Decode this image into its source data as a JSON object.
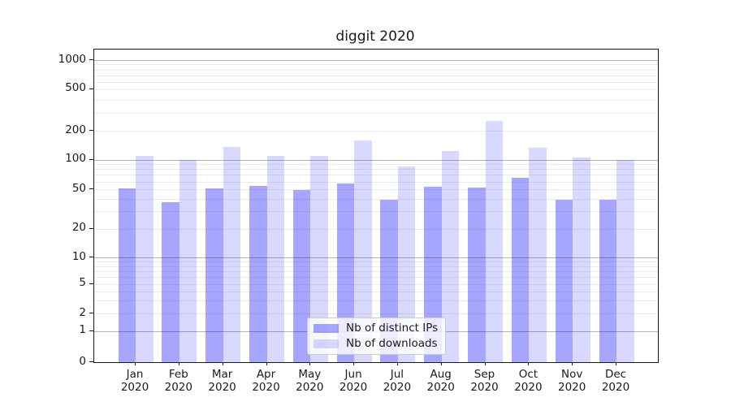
{
  "chart_data": {
    "type": "bar",
    "title": "diggit 2020",
    "categories": [
      "Jan",
      "Feb",
      "Mar",
      "Apr",
      "May",
      "Jun",
      "Jul",
      "Aug",
      "Sep",
      "Oct",
      "Nov",
      "Dec"
    ],
    "x_sub_label": "2020",
    "series": [
      {
        "name": "Nb of distinct IPs",
        "color": "rgba(0,0,255,0.35)",
        "values": [
          51,
          37,
          51,
          54,
          49,
          57,
          39,
          53,
          52,
          66,
          39,
          39
        ]
      },
      {
        "name": "Nb of downloads",
        "color": "rgba(0,0,255,0.15)",
        "values": [
          110,
          100,
          135,
          110,
          110,
          160,
          86,
          123,
          250,
          133,
          105,
          100
        ]
      }
    ],
    "yscale": "symlog",
    "y_ticks": [
      0,
      1,
      2,
      5,
      10,
      20,
      50,
      100,
      200,
      500,
      1000
    ],
    "ylim": [
      0,
      1280
    ],
    "grid": true,
    "legend_position": "lower center"
  },
  "colors": {
    "bar_distinct_ips": "rgba(0,0,255,0.35)",
    "bar_downloads": "rgba(0,0,255,0.15)",
    "grid_major": "#b4b4b4",
    "grid_minor": "#ebebeb",
    "spine": "#1a1a1a",
    "text": "#1a1a1a",
    "legend_bg": "rgba(255,255,255,0.8)",
    "legend_border": "#cccccc"
  }
}
